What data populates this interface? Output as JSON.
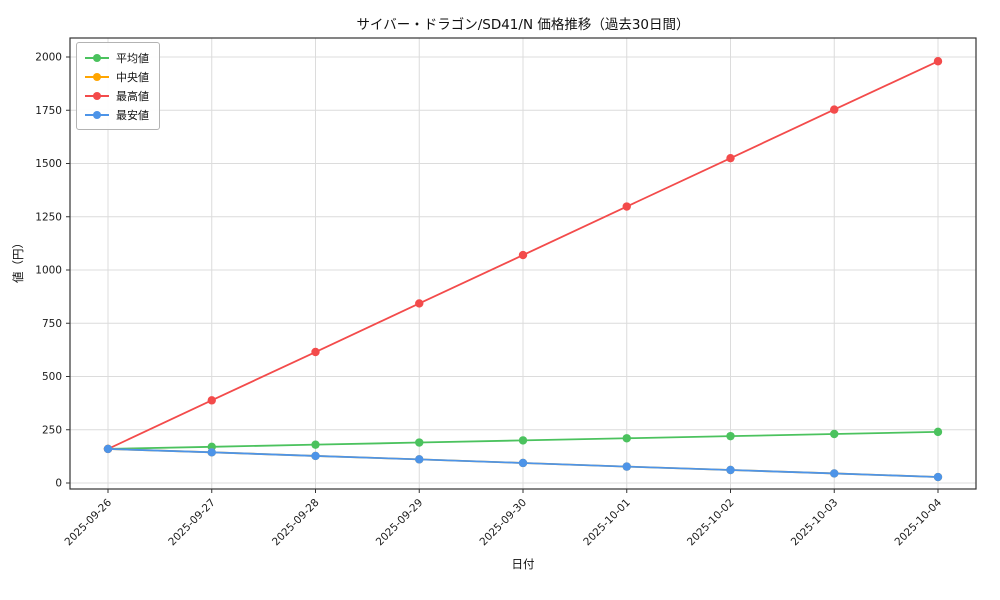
{
  "chart_data": {
    "type": "line",
    "title": "サイバー・ドラゴン/SD41/N 価格推移（過去30日間）",
    "xlabel": "日付",
    "ylabel": "値（円）",
    "x": [
      "2025-09-26",
      "2025-09-27",
      "2025-09-28",
      "2025-09-29",
      "2025-09-30",
      "2025-10-01",
      "2025-10-02",
      "2025-10-03",
      "2025-10-04"
    ],
    "ylim": [
      0,
      2000
    ],
    "yticks": [
      0,
      250,
      500,
      750,
      1000,
      1250,
      1500,
      1750,
      2000
    ],
    "grid": true,
    "legend_position": "upper-left",
    "series": [
      {
        "name": "平均値",
        "color": "#4bc25e",
        "values": [
          160,
          170,
          180,
          190,
          200,
          210,
          220,
          230,
          240
        ]
      },
      {
        "name": "中央値",
        "color": "#ffa500",
        "values": [
          160,
          144,
          127,
          111,
          94,
          77,
          61,
          45,
          28
        ]
      },
      {
        "name": "最高値",
        "color": "#f34b4b",
        "values": [
          160,
          388,
          615,
          843,
          1070,
          1298,
          1525,
          1753,
          1980
        ]
      },
      {
        "name": "最安値",
        "color": "#4d94e8",
        "values": [
          160,
          144,
          127,
          111,
          94,
          77,
          61,
          45,
          28
        ]
      }
    ]
  }
}
